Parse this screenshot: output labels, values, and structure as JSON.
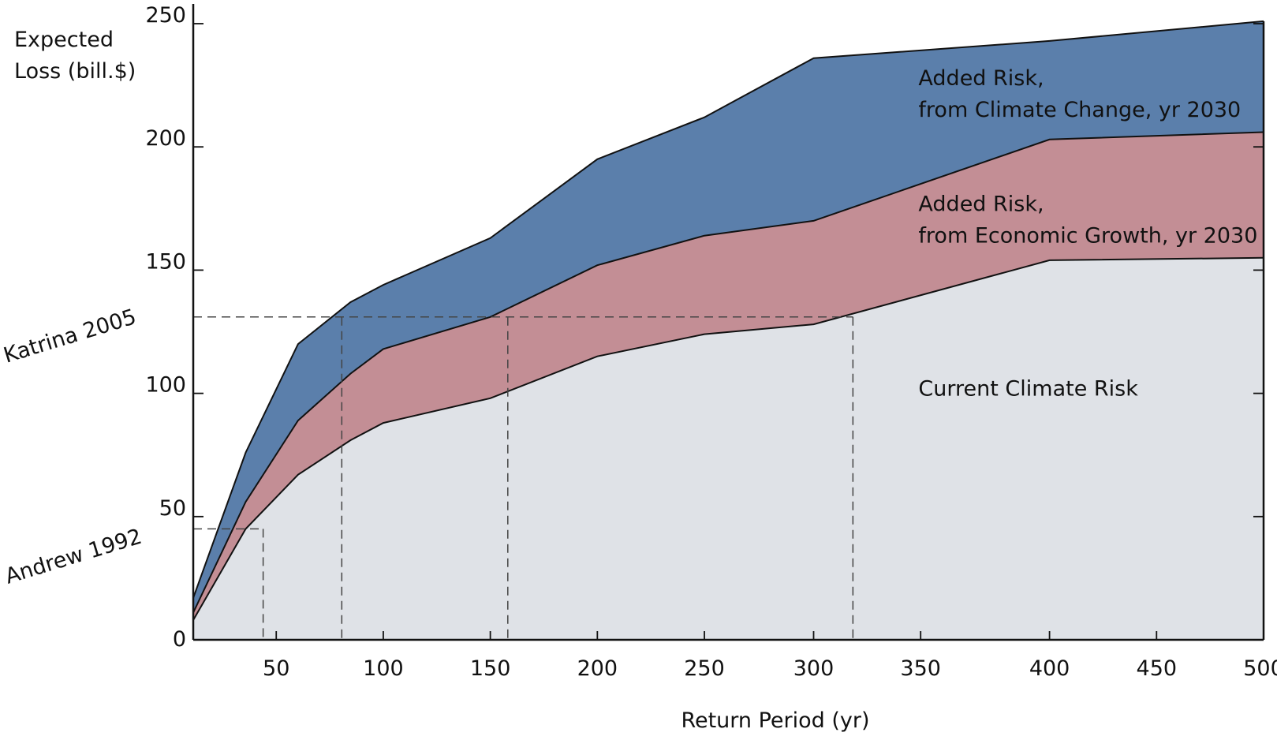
{
  "chart_data": {
    "type": "area",
    "stacked": true,
    "xlabel": "Return Period (yr)",
    "ylabel": [
      "Expected",
      "Loss (bill.$)"
    ],
    "xlim": [
      10,
      500
    ],
    "ylim": [
      0,
      250
    ],
    "grid": false,
    "x_ticks": [
      {
        "label": "50",
        "value": 48
      },
      {
        "label": "100",
        "value": 97
      },
      {
        "label": "150",
        "value": 146
      },
      {
        "label": "200",
        "value": 195
      },
      {
        "label": "250",
        "value": 244
      },
      {
        "label": "300",
        "value": 294
      },
      {
        "label": "350",
        "value": 343
      },
      {
        "label": "400",
        "value": 402
      },
      {
        "label": "450",
        "value": 451
      },
      {
        "label": "500",
        "value": 500
      }
    ],
    "y_ticks": [
      0,
      50,
      100,
      150,
      200,
      250
    ],
    "x": [
      10,
      34,
      58,
      82,
      97,
      146,
      195,
      244,
      294,
      402,
      500
    ],
    "series": [
      {
        "name": "Current Climate Risk",
        "label_lines": [
          "Current Climate Risk"
        ],
        "color": "#dfe2e7",
        "label_at": [
          342,
          99
        ],
        "values": [
          8,
          45,
          67,
          81,
          88,
          98,
          115,
          124,
          128,
          154,
          155
        ]
      },
      {
        "name": "Added Risk, from Economic Growth, yr 2030",
        "label_lines": [
          "Added Risk,",
          "from Economic Growth, yr 2030"
        ],
        "color": "#c38e95",
        "label_at": [
          342,
          174
        ],
        "values": [
          3,
          11,
          22,
          27,
          30,
          33,
          37,
          40,
          42,
          49,
          51
        ]
      },
      {
        "name": "Added Risk, from Climate Change, yr 2030",
        "label_lines": [
          "Added Risk,",
          "from Climate Change, yr 2030"
        ],
        "color": "#5b7fab",
        "label_at": [
          342,
          225
        ],
        "values": [
          6,
          20,
          31,
          29,
          26,
          32,
          43,
          48,
          66,
          40,
          45
        ]
      }
    ],
    "annotations": [
      {
        "label": "Katrina 2005",
        "y": 131,
        "x_values": [
          78,
          154,
          312
        ]
      },
      {
        "label": "Andrew 1992",
        "y": 45,
        "x_values": [
          42
        ]
      }
    ]
  }
}
